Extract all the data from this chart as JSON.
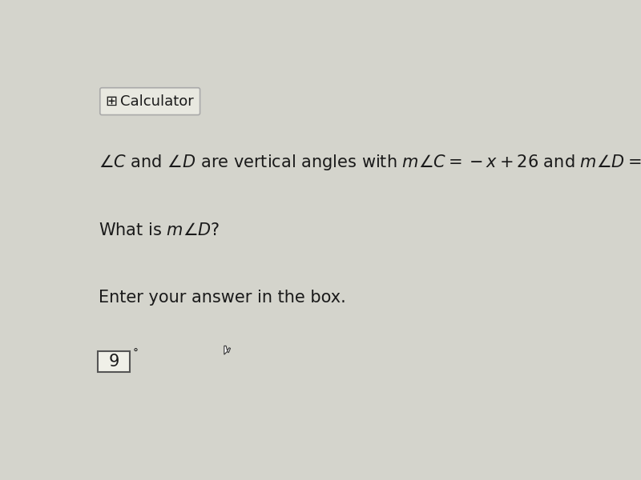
{
  "bg_color": "#d4d4cc",
  "calc_btn_bg": "#e8e8e0",
  "calc_btn_border": "#aaaaaa",
  "answer_degree": "°",
  "font_size_main": 15,
  "font_size_question": 15,
  "font_size_instruction": 15,
  "font_size_calc": 13,
  "font_size_answer": 15,
  "text_color": "#1a1a1a"
}
